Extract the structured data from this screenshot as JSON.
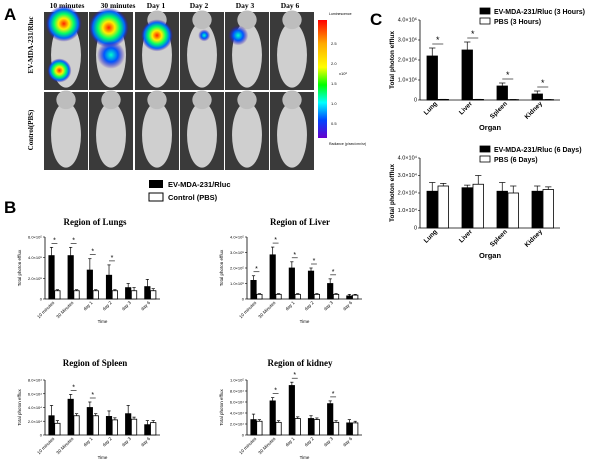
{
  "panels": {
    "a": {
      "letter": "A",
      "timepoints": [
        "10 minutes",
        "30 minutes",
        "Day 1",
        "Day 2",
        "Day 3",
        "Day 6"
      ],
      "row_labels": [
        "EV-MDA-231/Rluc",
        "Control(PBS)"
      ],
      "colorbar": {
        "top_label": "Luminescence",
        "ticks": [
          "2.5",
          "2.0",
          "x10⁶",
          "1.5",
          "1.0",
          "0.5"
        ],
        "bottom_label": "Radiance (p/sec/cm²/sr)"
      }
    },
    "b": {
      "letter": "B",
      "legend": [
        "EV-MDA-231/Rluc",
        "Control (PBS)"
      ]
    },
    "c": {
      "letter": "C"
    }
  },
  "colors": {
    "ev_bar": "#000000",
    "control_bar": "#ffffff",
    "mouse_body": "#cfcfcf",
    "image_bg": "#3a3a3a"
  },
  "chart_data": [
    {
      "id": "b1",
      "type": "bar",
      "title": "Region of Lungs",
      "ylabel": "Total photon efflux",
      "xlabel": "Time",
      "categories": [
        "10 minutes",
        "30 Minutes",
        "day 1",
        "day 2",
        "day 3",
        "day 6"
      ],
      "yticks": [
        "0",
        "2.0×10⁵",
        "4.0×10⁵",
        "6.0×10⁵"
      ],
      "ylim": [
        0,
        600000
      ],
      "series": [
        {
          "name": "EV-MDA-231/Rluc",
          "values": [
            420000,
            420000,
            280000,
            230000,
            110000,
            120000
          ],
          "errors": [
            80000,
            80000,
            110000,
            100000,
            40000,
            70000
          ]
        },
        {
          "name": "Control (PBS)",
          "values": [
            80000,
            80000,
            80000,
            80000,
            80000,
            80000
          ],
          "errors": [
            10000,
            10000,
            10000,
            10000,
            30000,
            20000
          ]
        }
      ],
      "significant": [
        0,
        1,
        2,
        3
      ]
    },
    {
      "id": "b2",
      "type": "bar",
      "title": "Region of Liver",
      "ylabel": "Total photon efflux",
      "xlabel": "Time",
      "categories": [
        "10 minutes",
        "30 Minutes",
        "day 1",
        "day 2",
        "day 3",
        "day 6"
      ],
      "yticks": [
        "0",
        "1.0×10⁵",
        "2.0×10⁵",
        "3.0×10⁵",
        "4.0×10⁵"
      ],
      "ylim": [
        0,
        400000
      ],
      "series": [
        {
          "name": "EV-MDA-231/Rluc",
          "values": [
            120000,
            285000,
            200000,
            180000,
            100000,
            20000
          ],
          "errors": [
            30000,
            50000,
            40000,
            20000,
            30000,
            10000
          ]
        },
        {
          "name": "Control (PBS)",
          "values": [
            30000,
            30000,
            30000,
            30000,
            30000,
            25000
          ],
          "errors": [
            5000,
            5000,
            5000,
            5000,
            5000,
            5000
          ]
        }
      ],
      "significant": [
        0,
        1,
        2,
        3,
        4
      ]
    },
    {
      "id": "b3",
      "type": "bar",
      "title": "Region of Spleen",
      "ylabel": "Total photon efflux",
      "xlabel": "Time",
      "categories": [
        "10 minutes",
        "30 Minutes",
        "day 1",
        "day 2",
        "day 3",
        "day 6"
      ],
      "yticks": [
        "0",
        "2.0×10⁴",
        "4.0×10⁴",
        "6.0×10⁴",
        "8.0×10⁴"
      ],
      "ylim": [
        0,
        80000
      ],
      "series": [
        {
          "name": "EV-MDA-231/Rluc",
          "values": [
            28000,
            52000,
            40000,
            27000,
            31000,
            15000
          ],
          "errors": [
            15000,
            7000,
            8000,
            8000,
            12000,
            6000
          ]
        },
        {
          "name": "Control (PBS)",
          "values": [
            17000,
            28000,
            28000,
            22000,
            23000,
            18000
          ],
          "errors": [
            4000,
            3000,
            3000,
            3000,
            3000,
            3000
          ]
        }
      ],
      "significant": [
        1,
        2
      ]
    },
    {
      "id": "b4",
      "type": "bar",
      "title": "Region of kidney",
      "ylabel": "Total photon efflux",
      "xlabel": "Time",
      "categories": [
        "10 minutes",
        "30 Minutes",
        "day 1",
        "day 2",
        "day 3",
        "day 6"
      ],
      "yticks": [
        "0",
        "2.0×10⁴",
        "4.0×10⁴",
        "6.0×10⁴",
        "8.0×10⁴",
        "1.0×10⁵"
      ],
      "ylim": [
        0,
        100000
      ],
      "series": [
        {
          "name": "EV-MDA-231/Rluc",
          "values": [
            28000,
            62000,
            90000,
            30000,
            57000,
            22000
          ],
          "errors": [
            10000,
            6000,
            6000,
            5000,
            5000,
            6000
          ]
        },
        {
          "name": "Control (PBS)",
          "values": [
            25000,
            23000,
            30000,
            28000,
            23000,
            22000
          ],
          "errors": [
            3000,
            3000,
            3000,
            3000,
            3000,
            3000
          ]
        }
      ],
      "significant": [
        1,
        2,
        4
      ]
    },
    {
      "id": "c1",
      "type": "bar",
      "title": "",
      "ylabel": "Total photon efflux",
      "xlabel": "Organ",
      "categories": [
        "Lung",
        "Liver",
        "Spleen",
        "Kidney"
      ],
      "yticks": [
        "0",
        "1.0×10⁶",
        "2.0×10⁶",
        "3.0×10⁶",
        "4.0×10⁶"
      ],
      "ylim": [
        0,
        4000000
      ],
      "series": [
        {
          "name": "EV-MDA-231/Rluc (3 Hours)",
          "values": [
            2200000,
            2500000,
            700000,
            300000
          ],
          "errors": [
            400000,
            400000,
            150000,
            150000
          ]
        },
        {
          "name": "PBS (3 Hours)",
          "values": [
            30000,
            30000,
            20000,
            20000
          ],
          "errors": [
            5000,
            5000,
            5000,
            5000
          ]
        }
      ],
      "significant": [
        0,
        1,
        2,
        3
      ]
    },
    {
      "id": "c2",
      "type": "bar",
      "title": "",
      "ylabel": "Total photon efflux",
      "xlabel": "Organ",
      "categories": [
        "Lung",
        "Liver",
        "Spleen",
        "Kidney"
      ],
      "yticks": [
        "0",
        "1.0×10⁴",
        "2.0×10⁴",
        "3.0×10⁴",
        "4.0×10⁴"
      ],
      "ylim": [
        0,
        40000
      ],
      "series": [
        {
          "name": "EV-MDA-231/Rluc (6 Days)",
          "values": [
            21000,
            23000,
            21000,
            21000
          ],
          "errors": [
            5000,
            1500,
            5000,
            3000
          ]
        },
        {
          "name": "PBS (6 Days)",
          "values": [
            24000,
            25000,
            20000,
            22000
          ],
          "errors": [
            1500,
            5000,
            4000,
            1500
          ]
        }
      ],
      "significant": []
    }
  ]
}
